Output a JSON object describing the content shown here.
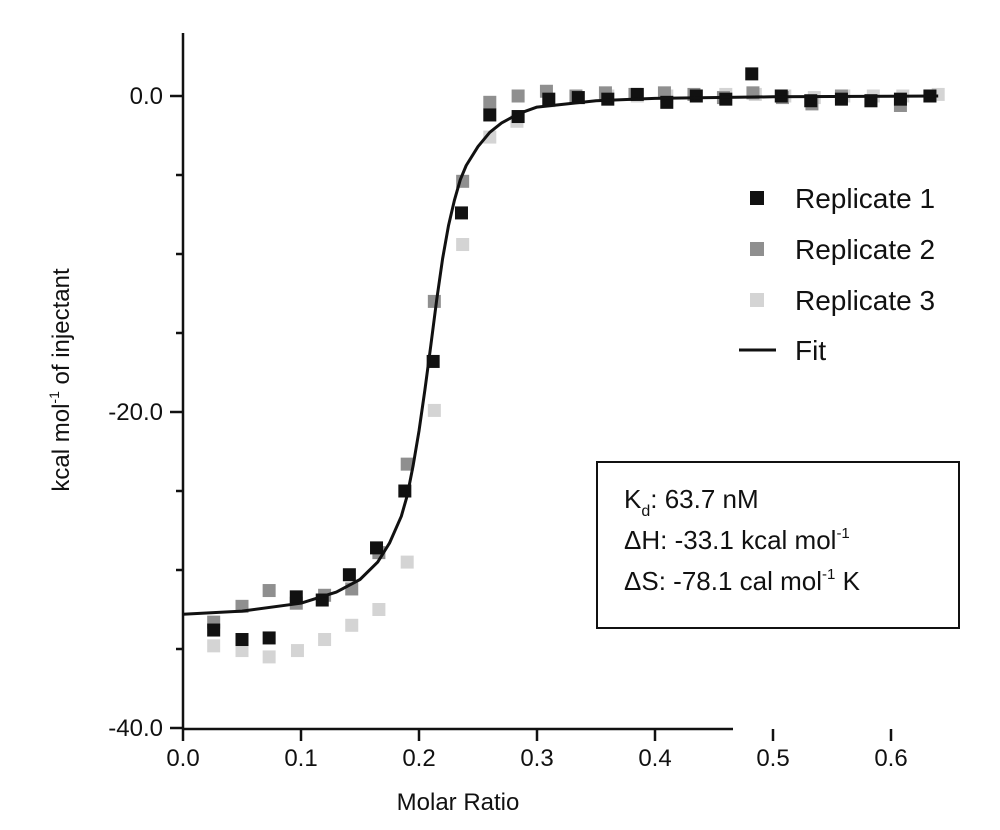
{
  "chart_data": {
    "type": "scatter",
    "title": "",
    "xlabel": "Molar Ratio",
    "ylabel_parts": [
      "kcal mol",
      "-1",
      " of injectant"
    ],
    "xlim": [
      0,
      0.65
    ],
    "ylim": [
      -40,
      4
    ],
    "x_ticks": [
      0.0,
      0.1,
      0.2,
      0.3,
      0.4,
      0.5,
      0.6
    ],
    "x_tick_labels": [
      "0.0",
      "0.1",
      "0.2",
      "0.3",
      "0.4",
      "0.5",
      "0.6"
    ],
    "y_ticks_major": [
      0,
      -20,
      -40
    ],
    "y_tick_labels": [
      "0.0",
      "-20.0",
      "-40.0"
    ],
    "y_ticks_minor": [
      -5,
      -10,
      -15,
      -25,
      -30,
      -35
    ],
    "grid": false,
    "legend_position": "right",
    "series": [
      {
        "name": "Replicate 1",
        "color": "#111111",
        "marker": "square",
        "x": [
          0.026,
          0.05,
          0.073,
          0.096,
          0.118,
          0.141,
          0.164,
          0.188,
          0.212,
          0.236,
          0.26,
          0.284,
          0.31,
          0.335,
          0.36,
          0.385,
          0.41,
          0.435,
          0.46,
          0.482,
          0.507,
          0.532,
          0.558,
          0.583,
          0.608,
          0.633
        ],
        "y": [
          -33.8,
          -34.4,
          -34.3,
          -31.7,
          -31.9,
          -30.3,
          -28.6,
          -25.0,
          -16.8,
          -7.4,
          -1.2,
          -1.3,
          -0.2,
          -0.1,
          -0.2,
          0.1,
          -0.4,
          0.0,
          -0.2,
          1.4,
          0.0,
          -0.3,
          -0.2,
          -0.3,
          -0.2,
          0.0
        ]
      },
      {
        "name": "Replicate 2",
        "color": "#8f8f8f",
        "marker": "square",
        "x": [
          0.026,
          0.05,
          0.073,
          0.096,
          0.12,
          0.143,
          0.166,
          0.19,
          0.213,
          0.237,
          0.26,
          0.284,
          0.308,
          0.333,
          0.358,
          0.383,
          0.408,
          0.433,
          0.458,
          0.483,
          0.508,
          0.533,
          0.558,
          0.583,
          0.608,
          0.633
        ],
        "y": [
          -33.3,
          -32.3,
          -31.3,
          -32.1,
          -31.6,
          -31.2,
          -28.9,
          -23.3,
          -13.0,
          -5.4,
          -0.4,
          0.0,
          0.3,
          0.0,
          0.2,
          0.1,
          0.2,
          0.1,
          -0.1,
          0.2,
          -0.1,
          -0.5,
          0.0,
          -0.3,
          -0.6,
          0.0
        ]
      },
      {
        "name": "Replicate 3",
        "color": "#d4d4d4",
        "marker": "square",
        "x": [
          0.026,
          0.05,
          0.073,
          0.097,
          0.12,
          0.143,
          0.166,
          0.19,
          0.213,
          0.237,
          0.26,
          0.283,
          0.31,
          0.335,
          0.36,
          0.385,
          0.41,
          0.435,
          0.46,
          0.485,
          0.51,
          0.535,
          0.56,
          0.585,
          0.61,
          0.64
        ],
        "y": [
          -34.8,
          -35.1,
          -35.5,
          -35.1,
          -34.4,
          -33.5,
          -32.5,
          -29.5,
          -19.9,
          -9.4,
          -2.6,
          -1.6,
          -0.3,
          -0.1,
          0.0,
          0.0,
          0.0,
          0.0,
          0.1,
          0.1,
          0.0,
          -0.1,
          0.0,
          0.0,
          0.0,
          0.1
        ]
      },
      {
        "name": "Fit",
        "color": "#111111",
        "marker": "line",
        "x": [
          0.0,
          0.05,
          0.1,
          0.13,
          0.15,
          0.165,
          0.175,
          0.185,
          0.19,
          0.195,
          0.2,
          0.205,
          0.21,
          0.215,
          0.22,
          0.225,
          0.23,
          0.235,
          0.24,
          0.25,
          0.26,
          0.27,
          0.285,
          0.3,
          0.35,
          0.4,
          0.5,
          0.64
        ],
        "y": [
          -32.8,
          -32.6,
          -32.1,
          -31.4,
          -30.6,
          -29.5,
          -28.3,
          -26.6,
          -25.3,
          -23.4,
          -21.2,
          -18.6,
          -15.8,
          -12.9,
          -10.3,
          -8.2,
          -6.6,
          -5.3,
          -4.4,
          -3.2,
          -2.3,
          -1.7,
          -1.1,
          -0.7,
          -0.3,
          -0.15,
          -0.05,
          0.0
        ]
      }
    ]
  },
  "stats": {
    "kd_symbol": "K",
    "kd_sub": "d",
    "kd_value": ": 63.7 nM",
    "dh_text": "ΔH: -33.1 kcal mol",
    "dh_sup": "-1",
    "ds_text": "ΔS: -78.1 cal mol",
    "ds_sup": "-1",
    "ds_unit": " K"
  }
}
